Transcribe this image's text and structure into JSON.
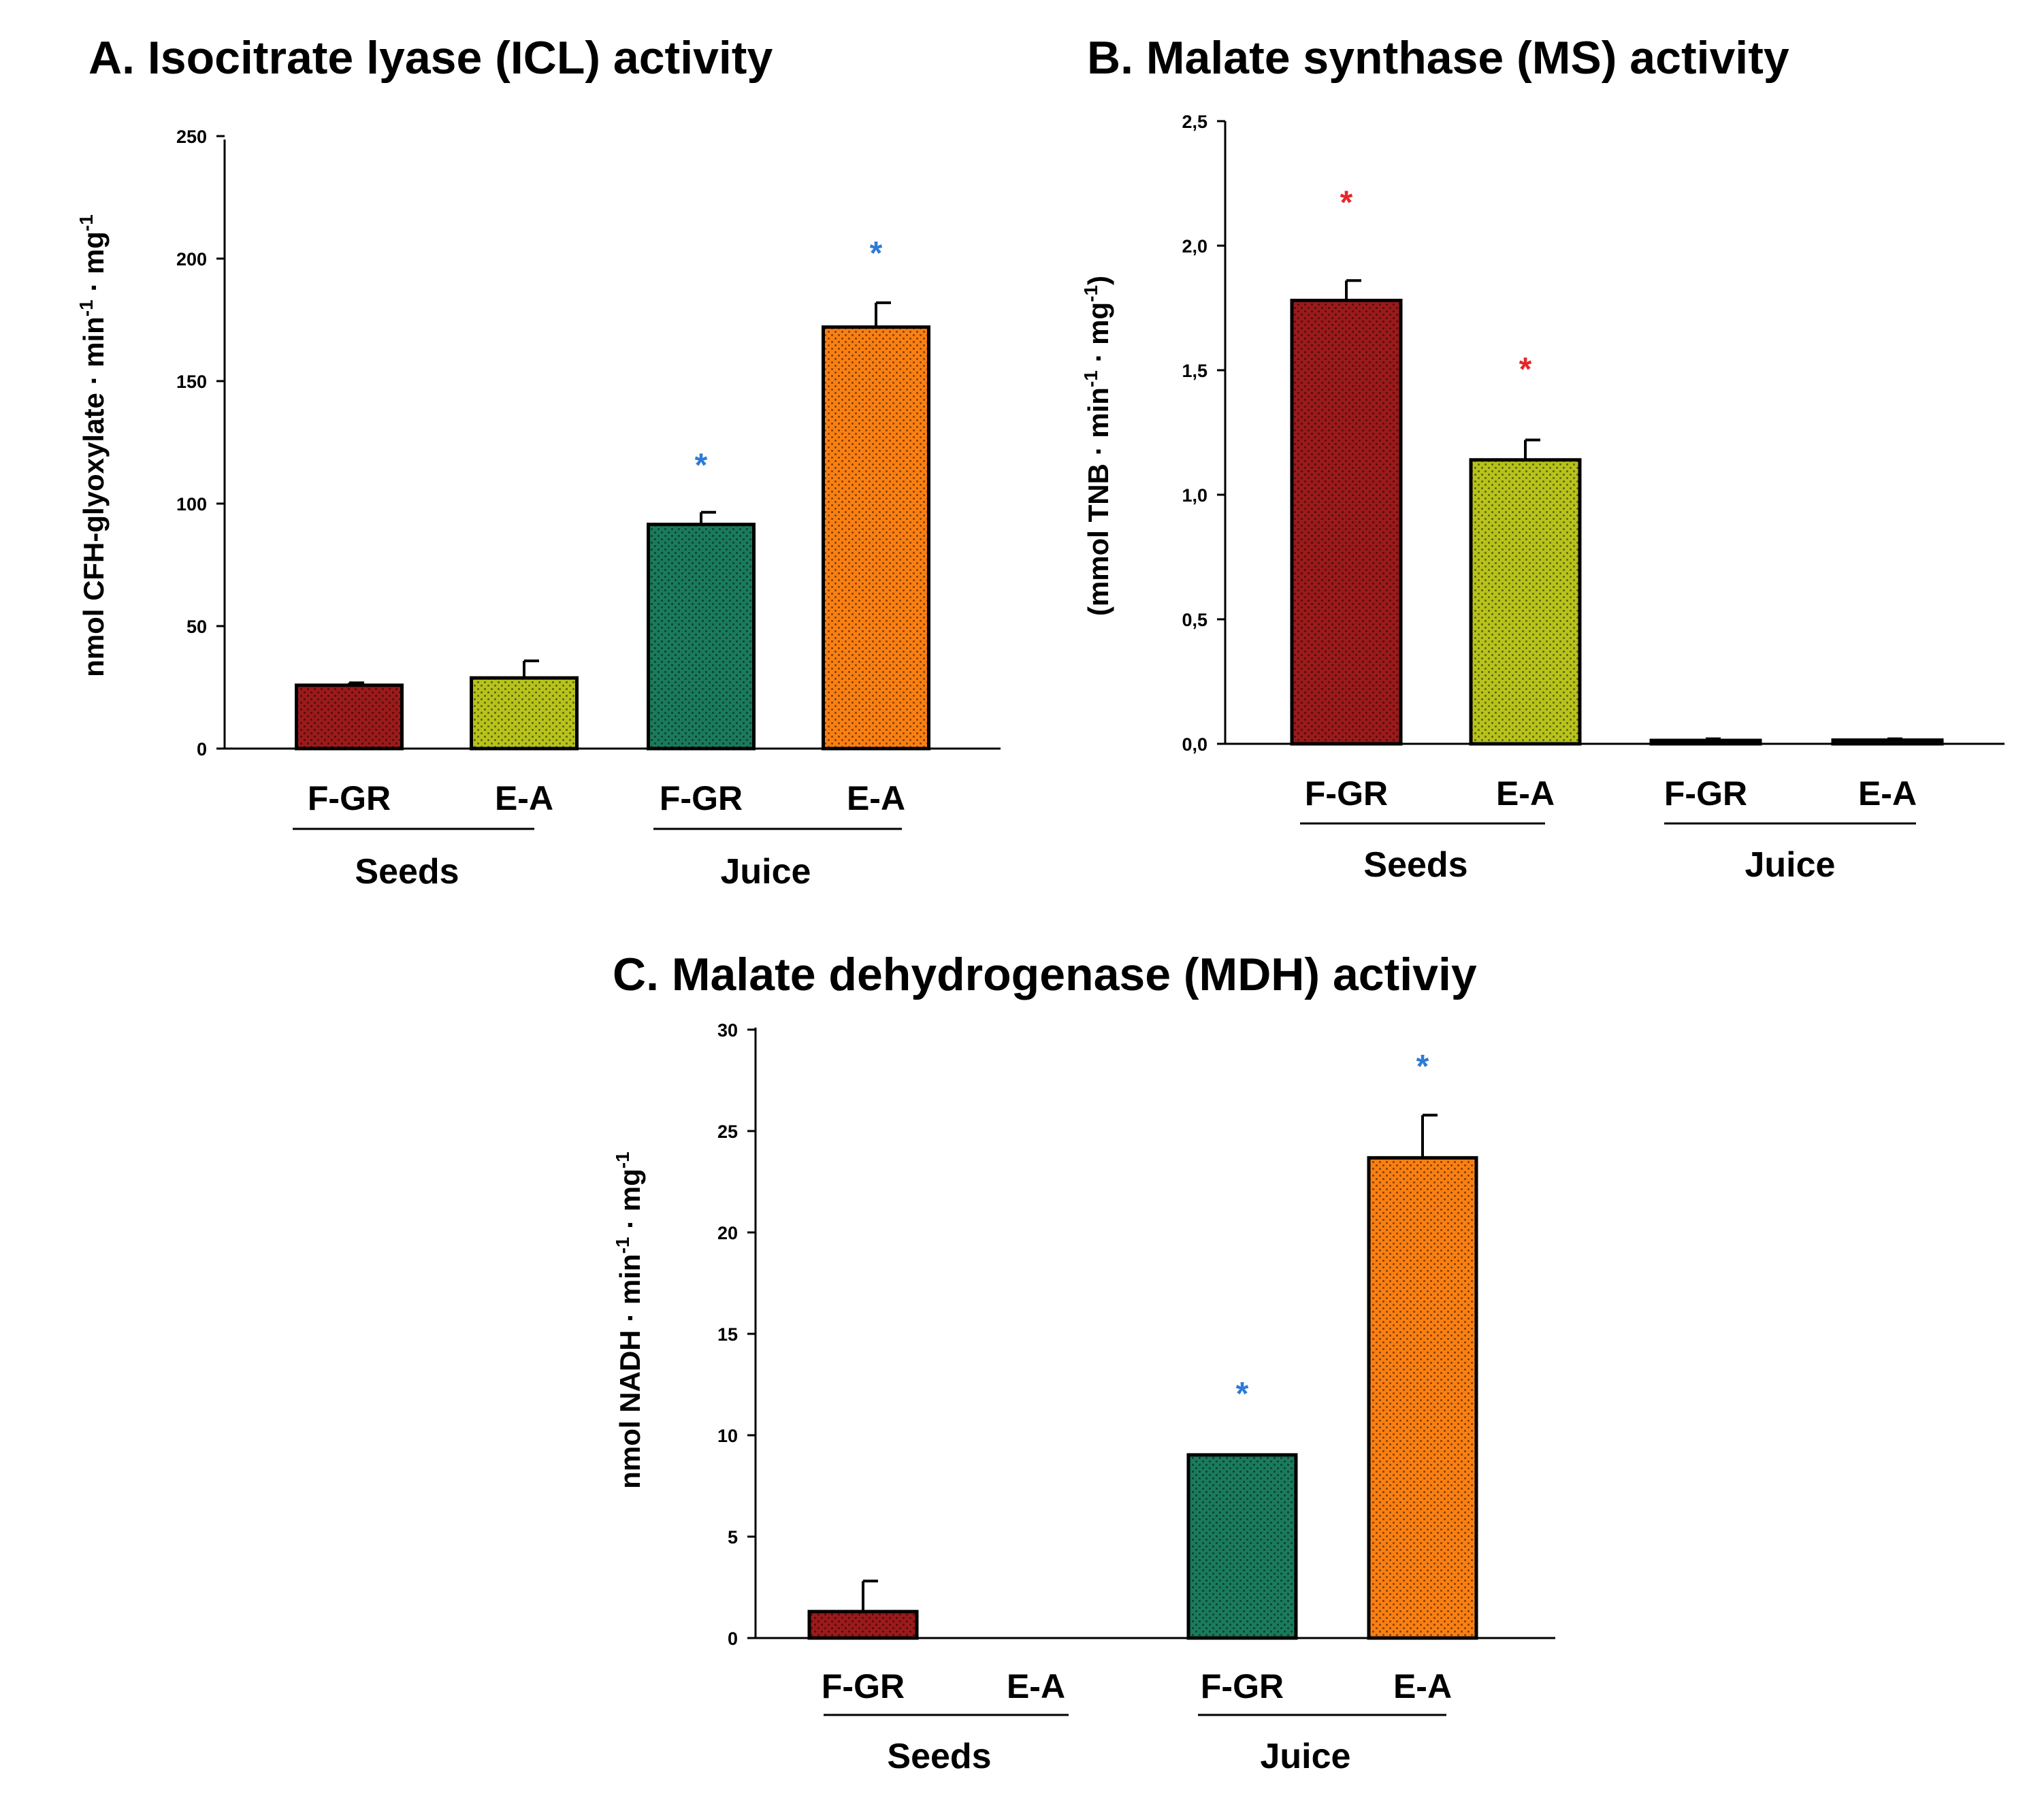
{
  "chart_data": [
    {
      "id": "A",
      "type": "bar",
      "title": "A. Isocitrate lyase (ICL) activity",
      "ylabel": {
        "base": "nmol CFH-glyoxylate · min",
        "sup1": "-1",
        "mid": " · mg",
        "sup2": "-1"
      },
      "ylim": [
        0,
        250
      ],
      "yticks": [
        "0",
        "50",
        "100",
        "150",
        "200",
        "250"
      ],
      "categories": [
        "F-GR",
        "E-A",
        "F-GR",
        "E-A"
      ],
      "groups": [
        {
          "name": "Seeds",
          "members": [
            0,
            1
          ]
        },
        {
          "name": "Juice",
          "members": [
            2,
            3
          ]
        }
      ],
      "values": [
        26,
        29,
        92,
        173
      ],
      "errors": [
        1,
        7,
        5,
        10
      ],
      "colors": [
        "#9b1a1a",
        "#b7c21b",
        "#1a7a5c",
        "#f97f12"
      ],
      "significance": [
        {
          "index": 2,
          "label": "*",
          "color": "#2d7bd6",
          "y": 118
        },
        {
          "index": 3,
          "label": "*",
          "color": "#2d7bd6",
          "y": 205
        }
      ]
    },
    {
      "id": "B",
      "type": "bar",
      "title": "B. Malate synthase (MS) activity",
      "ylabel": {
        "base": "(mmol TNB · min",
        "sup1": "-1",
        "mid": " · mg",
        "sup2": "-1",
        "tail": ")"
      },
      "ylim": [
        0,
        2.5
      ],
      "yticks": [
        "0,0",
        "0,5",
        "1,0",
        "1,5",
        "2,0",
        "2,5"
      ],
      "categories": [
        "F-GR",
        "E-A",
        "F-GR",
        "E-A"
      ],
      "groups": [
        {
          "name": "Seeds",
          "members": [
            0,
            1
          ]
        },
        {
          "name": "Juice",
          "members": [
            2,
            3
          ]
        }
      ],
      "values": [
        1.78,
        1.14,
        0.01,
        0.015
      ],
      "errors": [
        0.08,
        0.08,
        0.01,
        0.005
      ],
      "colors": [
        "#9b1a1a",
        "#b7c21b",
        "#1a1a1a",
        "#1a1a1a"
      ],
      "significance": [
        {
          "index": 0,
          "label": "*",
          "color": "#e8252a",
          "y": 2.19
        },
        {
          "index": 1,
          "label": "*",
          "color": "#e8252a",
          "y": 1.52
        }
      ]
    },
    {
      "id": "C",
      "type": "bar",
      "title": "C. Malate dehydrogenase (MDH) activiy",
      "ylabel": {
        "base": "nmol NADH · min",
        "sup1": "-1",
        "mid": " · mg",
        "sup2": "-1"
      },
      "ylim": [
        0,
        30
      ],
      "yticks": [
        "0",
        "5",
        "10",
        "15",
        "20",
        "25",
        "30"
      ],
      "categories": [
        "F-GR",
        "E-A",
        "F-GR",
        "E-A"
      ],
      "groups": [
        {
          "name": "Seeds",
          "members": [
            0,
            1
          ]
        },
        {
          "name": "Juice",
          "members": [
            2,
            3
          ]
        }
      ],
      "values": [
        1.3,
        0,
        9,
        23.6
      ],
      "errors": [
        1.5,
        0,
        0,
        2.1
      ],
      "colors": [
        "#9b1a1a",
        "#b7c21b",
        "#1a7a5c",
        "#f97f12"
      ],
      "significance": [
        {
          "index": 2,
          "label": "*",
          "color": "#2d7bd6",
          "y": 12.2
        },
        {
          "index": 3,
          "label": "*",
          "color": "#2d7bd6",
          "y": 28.3
        }
      ]
    }
  ]
}
